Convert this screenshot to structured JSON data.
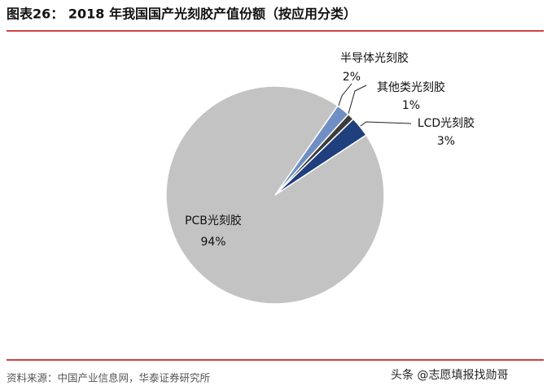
{
  "chart_data": {
    "type": "pie",
    "title": "图表26： 2018 年我国国产光刻胶产值份额（按应用分类）",
    "categories": [
      "半导体光刻胶",
      "其他类光刻胶",
      "LCD光刻胶",
      "PCB光刻胶"
    ],
    "values": [
      2,
      1,
      3,
      94
    ],
    "value_labels": [
      "2%",
      "1%",
      "3%",
      "94%"
    ],
    "colors": [
      "#6f8fc4",
      "#3b3b3b",
      "#1f3f7d",
      "#c3c3c3"
    ],
    "source": "资料来源：中国产业信息网，华泰证券研究所",
    "watermark": "头条 @志愿填报找勋哥"
  }
}
